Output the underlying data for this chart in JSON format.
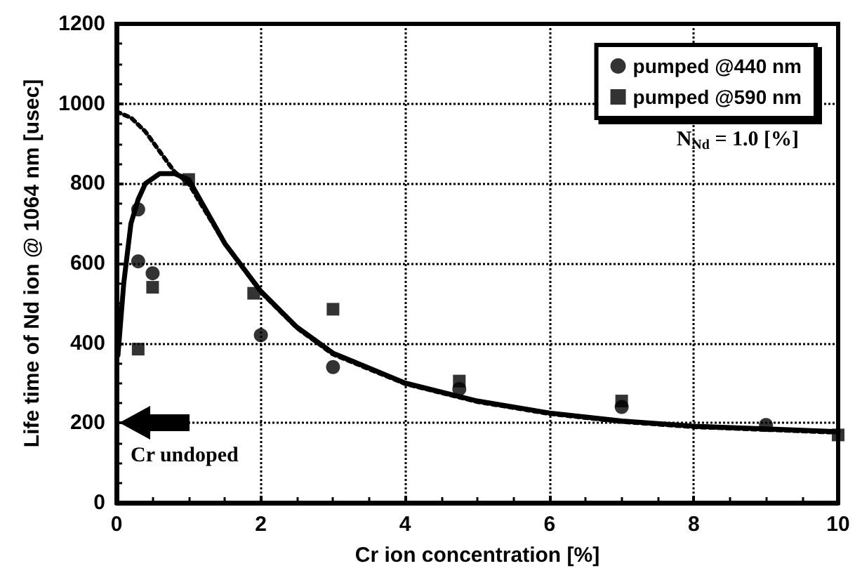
{
  "chart_data": {
    "type": "scatter",
    "xlabel": "Cr ion concentration [%]",
    "ylabel": "Life time of Nd ion @ 1064 nm [usec]",
    "xlim": [
      0,
      10
    ],
    "xticks": [
      0,
      2,
      4,
      6,
      8,
      10
    ],
    "ylim": [
      0,
      1200
    ],
    "yticks": [
      0,
      200,
      400,
      600,
      800,
      1000,
      1200
    ],
    "grid": true,
    "legend": "top right",
    "series": [
      {
        "name": "pumped @440 nm",
        "color": "#000000",
        "marker": "circle",
        "x": [
          0.3,
          0.3,
          0.5,
          2.0,
          3.0,
          4.75,
          7,
          9
        ],
        "values": [
          735,
          605,
          575,
          420,
          340,
          285,
          240,
          195
        ]
      },
      {
        "name": "pumped @590 nm",
        "color": "#000000",
        "marker": "square",
        "x": [
          0.3,
          0.5,
          1.0,
          1.9,
          3.0,
          4.75,
          7,
          10
        ],
        "values": [
          385,
          540,
          810,
          525,
          485,
          305,
          255,
          170
        ]
      },
      {
        "type": "line",
        "color": "#000000",
        "line_style": "solid",
        "marker": "none",
        "x": [
          0.02,
          0.1,
          0.2,
          0.3,
          0.4,
          0.6,
          0.8,
          1,
          1.5,
          2,
          2.5,
          3,
          4,
          5,
          6,
          7,
          8,
          9,
          10
        ],
        "values": [
          370,
          550,
          700,
          760,
          800,
          825,
          825,
          810,
          650,
          530,
          440,
          375,
          300,
          255,
          225,
          205,
          192,
          185,
          178
        ]
      },
      {
        "type": "line",
        "color": "#000000",
        "line_style": "dotted",
        "marker": "none",
        "x": [
          0,
          0.2,
          0.4,
          0.6,
          0.8,
          1,
          1.5,
          2,
          2.5,
          3,
          4,
          5,
          6,
          7,
          8,
          9,
          10
        ],
        "values": [
          980,
          965,
          930,
          880,
          830,
          800,
          650,
          528,
          438,
          372,
          298,
          253,
          223,
          203,
          190,
          183,
          176
        ]
      }
    ],
    "annotations": [
      "Cr undoped",
      "N$_{Nd}$ = 1.0 [%]"
    ]
  }
}
